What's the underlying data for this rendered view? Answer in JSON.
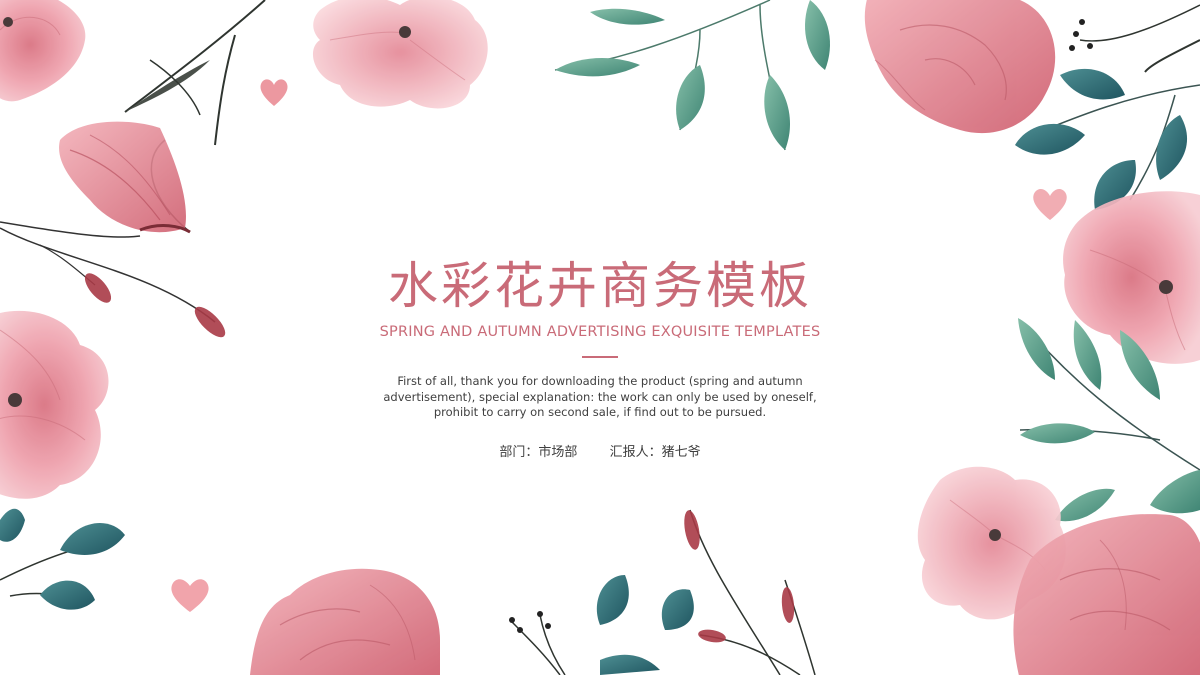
{
  "slide": {
    "title": "水彩花卉商务模板",
    "subtitle": "SPRING AND AUTUMN ADVERTISING EXQUISITE TEMPLATES",
    "description": "First of all, thank you for downloading the product (spring and autumn advertisement), special explanation: the work can only be used by oneself, prohibit to carry on second sale, if find out to be pursued.",
    "department": "部门：市场部",
    "reporter": "汇报人：猪七爷"
  },
  "colors": {
    "accent": "#c96b78",
    "petal_light": "#f3c3c9",
    "petal_mid": "#e89aa5",
    "petal_deep": "#d66f7d",
    "leaf_green": "#5f9c87",
    "leaf_teal": "#2f6f78",
    "stem": "#3a3a3a",
    "berry": "#b23a48",
    "text": "#3f3f3f"
  }
}
